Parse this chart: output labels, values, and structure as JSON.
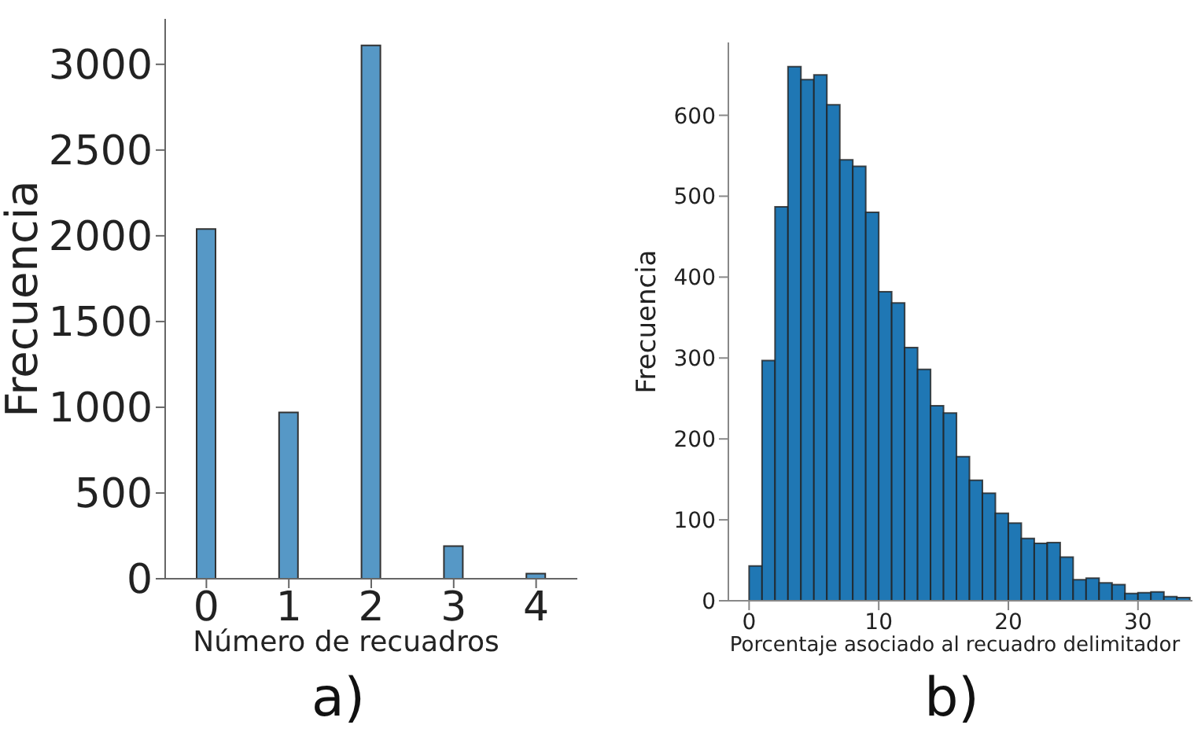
{
  "chart_data": [
    {
      "type": "bar",
      "xlabel": "Número de recuadros",
      "ylabel": "Frecuencia",
      "categories": [
        "0",
        "1",
        "2",
        "3",
        "4"
      ],
      "values": [
        2040,
        970,
        3110,
        190,
        30
      ],
      "color": "#5698c6",
      "ylim": [
        0,
        3265
      ],
      "yticks": [
        0,
        500,
        1000,
        1500,
        2000,
        2500,
        3000
      ],
      "annotations": [
        "a)"
      ]
    },
    {
      "type": "histogram",
      "xlabel": "Porcentaje asociado al recuadro delimitador",
      "ylabel": "Frecuencia",
      "bins": [
        0,
        1,
        2,
        3,
        4,
        5,
        6,
        7,
        8,
        9,
        10,
        11,
        12,
        13,
        14,
        15,
        16,
        17,
        18,
        19,
        20,
        21,
        22,
        23,
        24,
        25,
        26,
        27,
        28,
        29,
        30,
        31,
        32,
        33,
        34
      ],
      "values": [
        43,
        297,
        487,
        660,
        644,
        650,
        613,
        545,
        537,
        480,
        382,
        368,
        313,
        286,
        241,
        232,
        178,
        149,
        133,
        108,
        96,
        77,
        71,
        72,
        54,
        26,
        28,
        22,
        20,
        9,
        10,
        11,
        5,
        4
      ],
      "color": "#1f77b4",
      "xlim": [
        -1.6,
        34.2
      ],
      "xticks": [
        0,
        10,
        20,
        30
      ],
      "ylim": [
        0,
        690
      ],
      "yticks": [
        0,
        100,
        200,
        300,
        400,
        500,
        600
      ],
      "annotations": [
        "b)"
      ]
    }
  ]
}
